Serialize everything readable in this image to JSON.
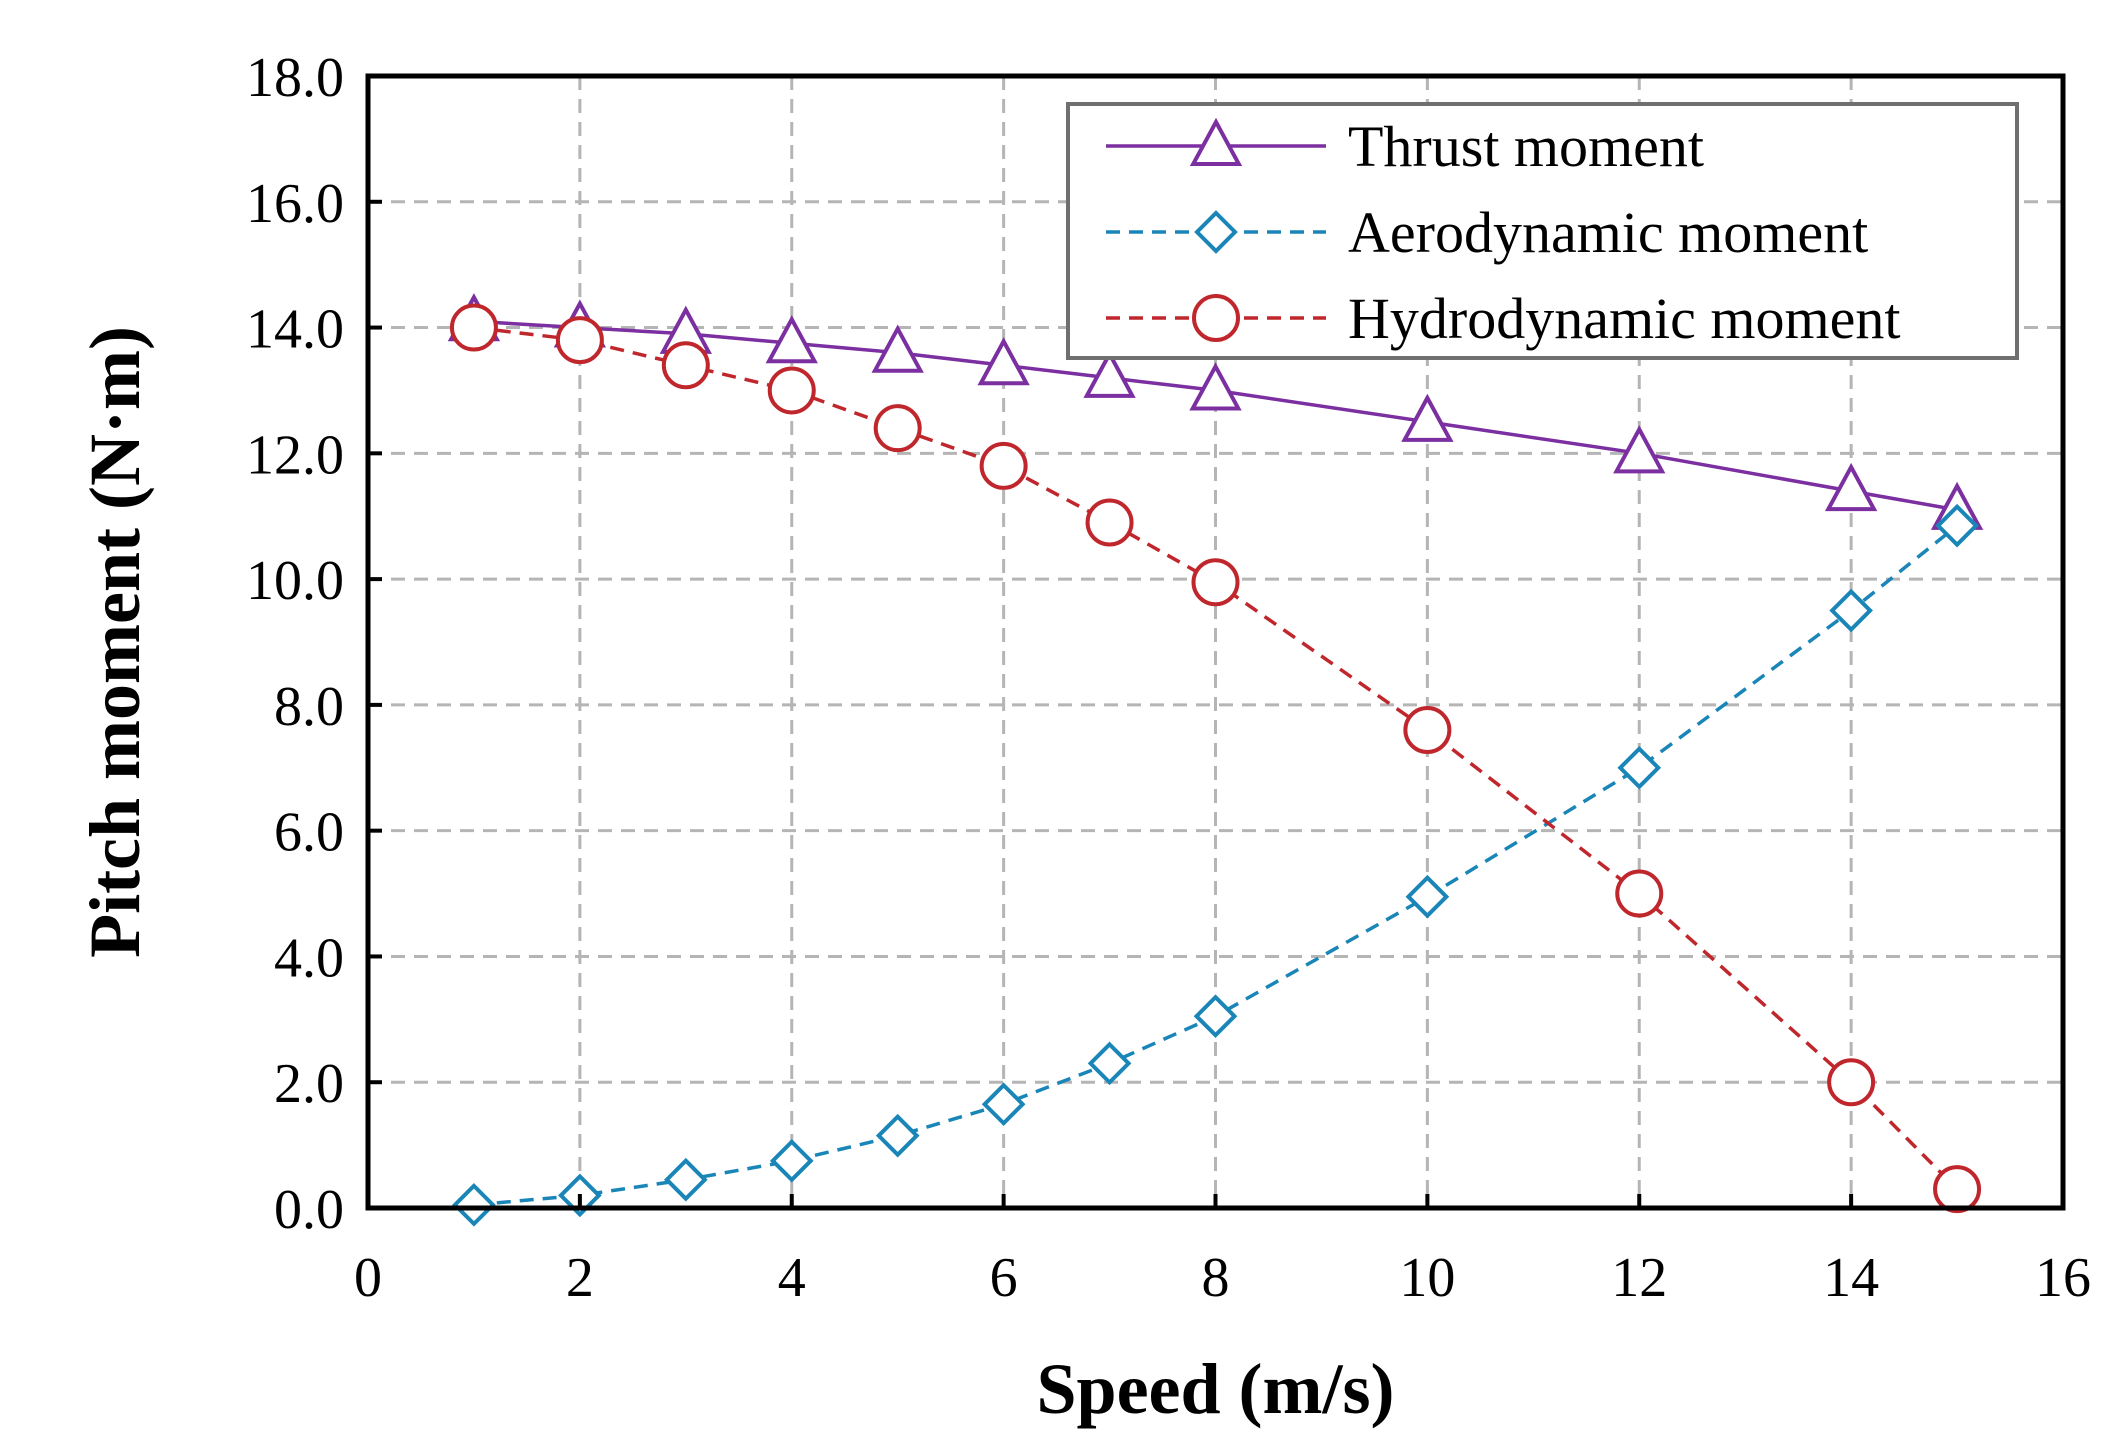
{
  "chart_data": {
    "type": "line",
    "title": "",
    "xlabel": "Speed (m/s)",
    "ylabel": "Pitch moment (N·m)",
    "xlim": [
      0,
      16
    ],
    "ylim": [
      0,
      18
    ],
    "xticks": [
      0,
      2,
      4,
      6,
      8,
      10,
      12,
      14,
      16
    ],
    "xtick_labels": [
      "0",
      "2",
      "4",
      "6",
      "8",
      "10",
      "12",
      "14",
      "16"
    ],
    "yticks": [
      0,
      2,
      4,
      6,
      8,
      10,
      12,
      14,
      16,
      18
    ],
    "ytick_labels": [
      "0.0",
      "2.0",
      "4.0",
      "6.0",
      "8.0",
      "10.0",
      "12.0",
      "14.0",
      "16.0",
      "18.0"
    ],
    "grid": true,
    "legend_position": "top-right",
    "series": [
      {
        "name": "Thrust moment",
        "color": "#7b2fa0",
        "line_style": "solid",
        "marker": "triangle",
        "x": [
          1,
          2,
          3,
          4,
          5,
          6,
          7,
          8,
          10,
          12,
          14,
          15
        ],
        "values": [
          14.1,
          14.0,
          13.9,
          13.75,
          13.6,
          13.4,
          13.2,
          13.0,
          12.5,
          12.0,
          11.4,
          11.1
        ]
      },
      {
        "name": "Aerodynamic moment",
        "color": "#1a86b8",
        "line_style": "dashed",
        "marker": "diamond",
        "x": [
          1,
          2,
          3,
          4,
          5,
          6,
          7,
          8,
          10,
          12,
          14,
          15
        ],
        "values": [
          0.05,
          0.2,
          0.45,
          0.75,
          1.15,
          1.65,
          2.3,
          3.05,
          4.95,
          7.0,
          9.5,
          10.85
        ]
      },
      {
        "name": "Hydrodynamic moment",
        "color": "#c0272d",
        "line_style": "dashed",
        "marker": "circle",
        "x": [
          1,
          2,
          3,
          4,
          5,
          6,
          7,
          8,
          10,
          12,
          14,
          15
        ],
        "values": [
          14.0,
          13.8,
          13.4,
          13.0,
          12.4,
          11.8,
          10.9,
          9.95,
          7.6,
          5.0,
          2.0,
          0.3
        ]
      }
    ]
  }
}
